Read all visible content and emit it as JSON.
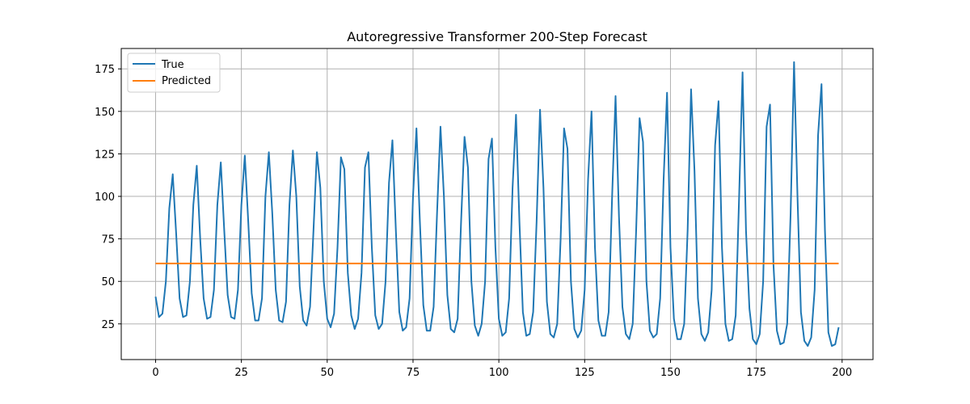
{
  "chart_data": {
    "type": "line",
    "title": "Autoregressive Transformer 200-Step Forecast",
    "xlabel": "",
    "ylabel": "",
    "xlim": [
      -10,
      209
    ],
    "ylim": [
      4,
      187
    ],
    "xticks": [
      0,
      25,
      50,
      75,
      100,
      125,
      150,
      175,
      200
    ],
    "yticks": [
      25,
      50,
      75,
      100,
      125,
      150,
      175
    ],
    "grid": true,
    "legend_position": "upper-left",
    "series": [
      {
        "name": "True",
        "color": "#1f77b4",
        "values": [
          41,
          29,
          31,
          50,
          93,
          113,
          78,
          40,
          29,
          30,
          50,
          95,
          118,
          75,
          40,
          28,
          29,
          45,
          95,
          120,
          80,
          42,
          29,
          28,
          45,
          95,
          124,
          85,
          43,
          27,
          27,
          40,
          100,
          126,
          90,
          45,
          27,
          26,
          38,
          95,
          127,
          100,
          47,
          27,
          24,
          35,
          80,
          126,
          105,
          50,
          28,
          23,
          31,
          70,
          123,
          116,
          55,
          30,
          22,
          28,
          55,
          117,
          126,
          70,
          30,
          22,
          25,
          50,
          108,
          133,
          80,
          32,
          21,
          23,
          40,
          100,
          140,
          85,
          36,
          21,
          21,
          35,
          90,
          141,
          100,
          42,
          22,
          20,
          28,
          85,
          135,
          117,
          50,
          24,
          18,
          25,
          50,
          122,
          134,
          70,
          28,
          18,
          20,
          40,
          105,
          148,
          85,
          32,
          18,
          19,
          32,
          85,
          151,
          105,
          38,
          19,
          17,
          25,
          75,
          140,
          128,
          50,
          22,
          17,
          21,
          45,
          110,
          150,
          70,
          27,
          18,
          18,
          32,
          100,
          159,
          88,
          35,
          19,
          16,
          25,
          80,
          146,
          132,
          50,
          21,
          17,
          19,
          40,
          110,
          161,
          70,
          28,
          16,
          16,
          25,
          80,
          163,
          115,
          40,
          19,
          15,
          20,
          45,
          130,
          156,
          70,
          25,
          15,
          16,
          30,
          100,
          173,
          80,
          34,
          16,
          13,
          19,
          50,
          141,
          154,
          60,
          21,
          13,
          14,
          25,
          90,
          179,
          100,
          32,
          15,
          12,
          17,
          45,
          136,
          166,
          80,
          20,
          12,
          13,
          23
        ]
      },
      {
        "name": "Predicted",
        "color": "#ff7f0e",
        "constant_value": 60.5
      }
    ]
  }
}
